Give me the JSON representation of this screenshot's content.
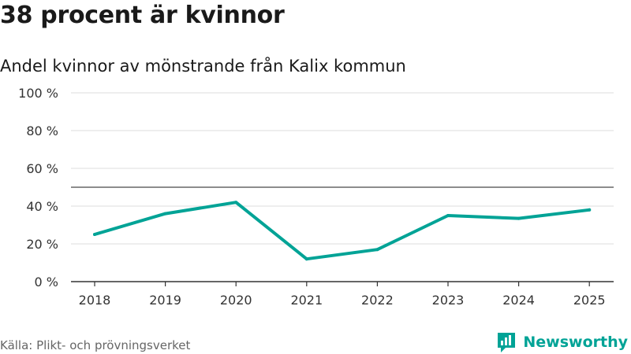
{
  "title": "38 procent är kvinnor",
  "subtitle": "Andel kvinnor av mönstrande från Kalix kommun",
  "source": "Källa: Plikt- och prövningsverket",
  "brand": {
    "name": "Newsworthy",
    "icon": "newsworthy-logo-icon",
    "color": "#00a396"
  },
  "chart_data": {
    "type": "line",
    "title": "38 procent är kvinnor",
    "subtitle": "Andel kvinnor av mönstrande från Kalix kommun",
    "x": [
      "2018",
      "2019",
      "2020",
      "2021",
      "2022",
      "2023",
      "2024",
      "2025"
    ],
    "series": [
      {
        "values": [
          25,
          36,
          42,
          12,
          17,
          35,
          33.5,
          38
        ],
        "color": "#00a396"
      }
    ],
    "reference_line": 50,
    "ylim": [
      0,
      100
    ],
    "yticks": [
      0,
      20,
      40,
      60,
      80,
      100
    ],
    "ytick_labels": [
      "0 %",
      "20 %",
      "40 %",
      "60 %",
      "80 %",
      "100 %"
    ],
    "grid": true,
    "legend": "none"
  }
}
